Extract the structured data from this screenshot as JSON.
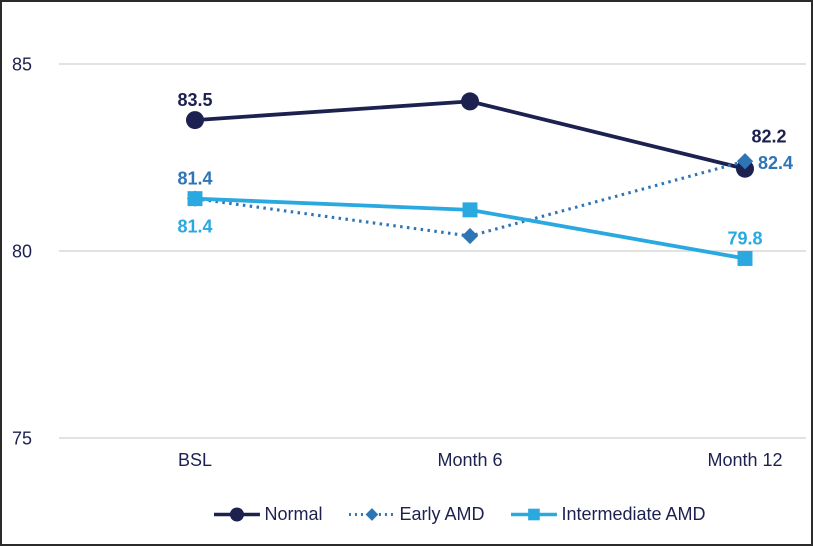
{
  "chart_data": {
    "type": "line",
    "title": "",
    "categories": [
      "BSL",
      "Month 6",
      "Month 12"
    ],
    "y_axis": {
      "ticks": [
        85,
        80,
        75
      ],
      "ylim": [
        74,
        86.5
      ],
      "gridlines": "horizontal"
    },
    "series": [
      {
        "name": "Normal",
        "values": [
          83.5,
          84.0,
          82.2
        ],
        "color": "#1C2150",
        "marker": "circle",
        "line_style": "solid",
        "point_labels": [
          {
            "at": "BSL",
            "text": "83.5",
            "placement": "above"
          },
          {
            "at": "Month 12",
            "text": "82.2",
            "placement": "above-right"
          }
        ]
      },
      {
        "name": "Early AMD",
        "values": [
          81.4,
          80.4,
          82.4
        ],
        "color": "#2E75B6",
        "marker": "diamond",
        "line_style": "dotted",
        "point_labels": [
          {
            "at": "BSL",
            "text": "81.4",
            "placement": "above"
          },
          {
            "at": "Month 12",
            "text": "82.4",
            "placement": "right"
          }
        ]
      },
      {
        "name": "Intermediate AMD",
        "values": [
          81.4,
          81.1,
          79.8
        ],
        "color": "#29A9E0",
        "marker": "square",
        "line_style": "solid",
        "point_labels": [
          {
            "at": "BSL",
            "text": "81.4",
            "placement": "below"
          },
          {
            "at": "Month 12",
            "text": "79.8",
            "placement": "above"
          }
        ]
      }
    ],
    "legend": {
      "position": "bottom-center",
      "entries": [
        "Normal",
        "Early AMD",
        "Intermediate AMD"
      ]
    },
    "colors": {
      "grid": "#D9D9D9",
      "axis_text": "#1C2150",
      "figure_border": "#2B2B2B",
      "background": "#FFFFFF"
    }
  }
}
